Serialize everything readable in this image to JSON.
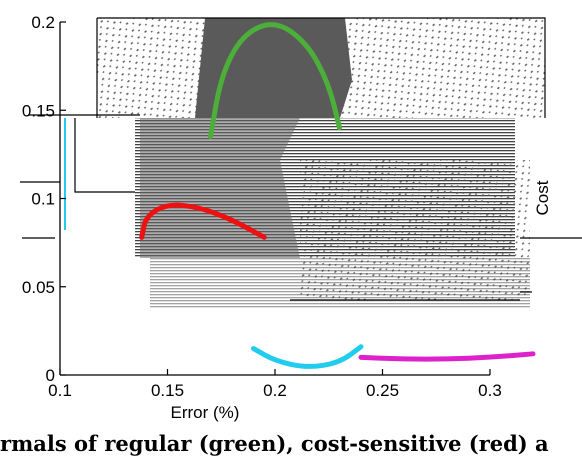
{
  "chart_data": {
    "type": "line",
    "xlabel": "Error (%)",
    "ylabel": "Cost",
    "x_ticks": [
      "0.1",
      "0.15",
      "0.2",
      "0.25",
      "0.3"
    ],
    "y_ticks": [
      "0",
      "0.05",
      "0.1",
      "0.15",
      "0.2"
    ],
    "xlim": [
      0.1,
      0.3
    ],
    "ylim": [
      0,
      0.2
    ],
    "grid": false,
    "series": [
      {
        "color": "#4caf3a",
        "x": [
          0.17,
          0.175,
          0.185,
          0.2,
          0.215,
          0.225,
          0.23
        ],
        "y": [
          0.135,
          0.17,
          0.193,
          0.201,
          0.188,
          0.165,
          0.14
        ]
      },
      {
        "color": "#ee1111",
        "x": [
          0.138,
          0.14,
          0.15,
          0.165,
          0.18,
          0.195
        ],
        "y": [
          0.078,
          0.09,
          0.097,
          0.095,
          0.088,
          0.078
        ]
      },
      {
        "color": "#22ccee",
        "x": [
          0.19,
          0.2,
          0.215,
          0.23,
          0.24
        ],
        "y": [
          0.015,
          0.008,
          0.004,
          0.007,
          0.016
        ]
      },
      {
        "color": "#dd22cc",
        "x": [
          0.24,
          0.26,
          0.28,
          0.3,
          0.32
        ],
        "y": [
          0.01,
          0.009,
          0.009,
          0.01,
          0.012
        ]
      }
    ]
  },
  "caption": "rmals of regular (green), cost-sensitive (red) a"
}
